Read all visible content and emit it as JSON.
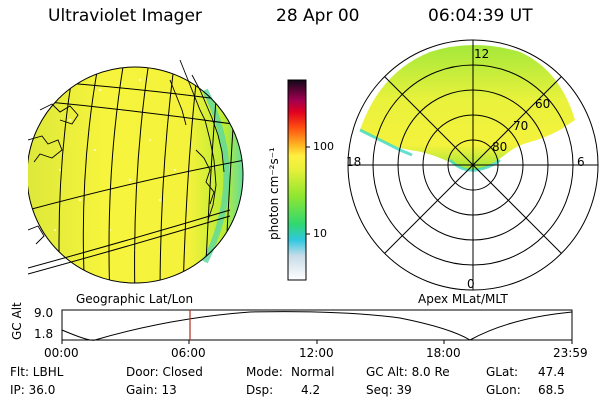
{
  "header": {
    "instrument": "Ultraviolet Imager",
    "date": "28 Apr 00",
    "time": "06:04:39 UT"
  },
  "panels": {
    "left_label": "Geographic Lat/Lon",
    "right_label": "Apex MLat/MLT"
  },
  "colorbar": {
    "unit_label": "photon cm⁻²s⁻¹",
    "ticks": [
      "100",
      "10"
    ]
  },
  "polar": {
    "mlt_labels": [
      "12",
      "18",
      "6",
      "0"
    ],
    "mlat_labels": [
      "60",
      "70",
      "80"
    ]
  },
  "altitude_plot": {
    "ylabel": "GC Alt",
    "ytick_top": "9.0",
    "ytick_bottom": "1.8",
    "xticks": [
      "00:00",
      "06:00",
      "12:00",
      "18:00",
      "23:59"
    ],
    "marker_time": "06:04"
  },
  "info": {
    "filter": "Flt: LBHL",
    "ip": "IP: 36.0",
    "door": "Door: Closed",
    "gain": "Gain: 13",
    "mode_label": "Mode:",
    "mode_value": "Normal",
    "dsp_label": "Dsp:",
    "dsp_value": "4.2",
    "gc_alt": "GC Alt: 8.0 Re",
    "seq": "Seq: 39",
    "glat_label": "GLat:",
    "glat_value": "47.4",
    "glon_label": "GLon:",
    "glon_value": "68.5"
  },
  "colors": {
    "aurora_yellow": "#f2f23a",
    "aurora_green": "#9fea30",
    "aurora_cyan": "#38d8c8",
    "marker": "#b03020"
  }
}
